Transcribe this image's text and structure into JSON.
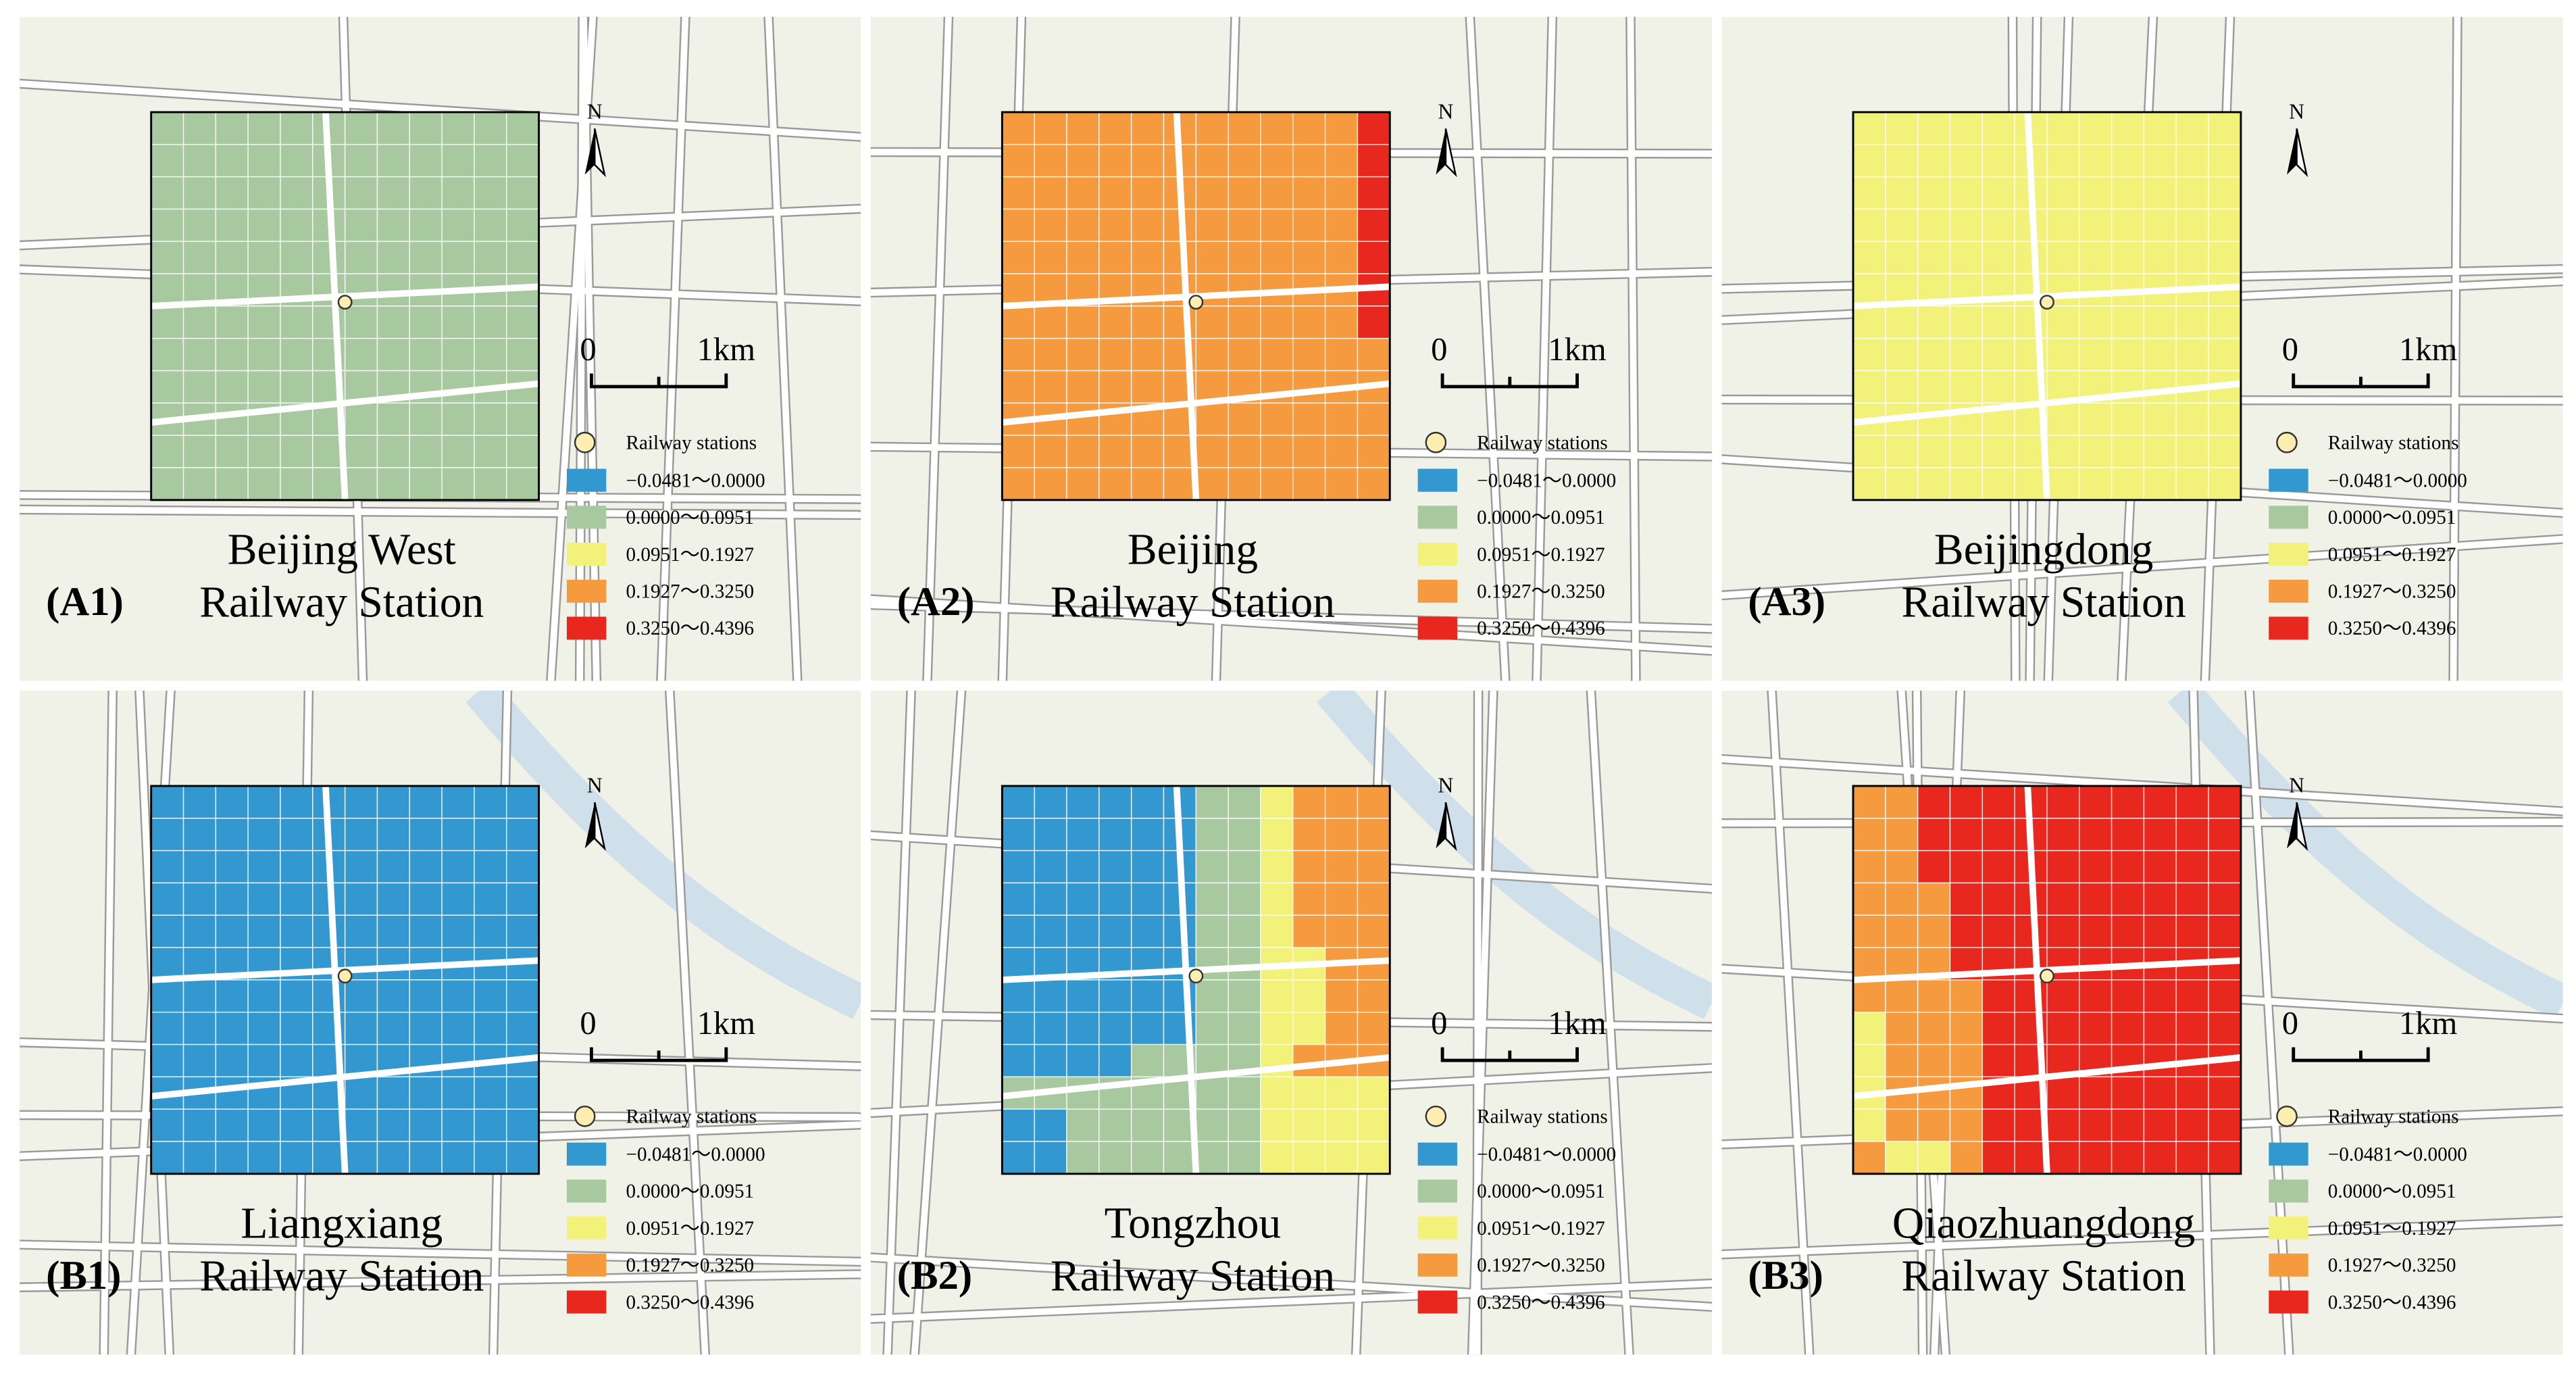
{
  "north": "N",
  "scale": {
    "zero": "0",
    "unit": "1km"
  },
  "legend": {
    "station": "Railway stations",
    "classes": [
      {
        "label": "−0.0481～0.0000",
        "color": "#3498d0"
      },
      {
        "label": "0.0000～0.0951",
        "color": "#a8c8a0"
      },
      {
        "label": "0.0951～0.1927",
        "color": "#f2f27a"
      },
      {
        "label": "0.1927～0.3250",
        "color": "#f59a3e"
      },
      {
        "label": "0.3250～0.4396",
        "color": "#e8281e"
      }
    ]
  },
  "panels": [
    {
      "id": "(A1)",
      "name": [
        "Beijing West",
        "Railway Station"
      ]
    },
    {
      "id": "(A2)",
      "name": [
        "Beijing",
        "Railway Station"
      ]
    },
    {
      "id": "(A3)",
      "name": [
        "Beijingdong",
        "Railway Station"
      ]
    },
    {
      "id": "(B1)",
      "name": [
        "Liangxiang",
        "Railway Station"
      ]
    },
    {
      "id": "(B2)",
      "name": [
        "Tongzhou",
        "Railway Station"
      ]
    },
    {
      "id": "(B3)",
      "name": [
        "Qiaozhuangdong",
        "Railway Station"
      ]
    }
  ]
}
